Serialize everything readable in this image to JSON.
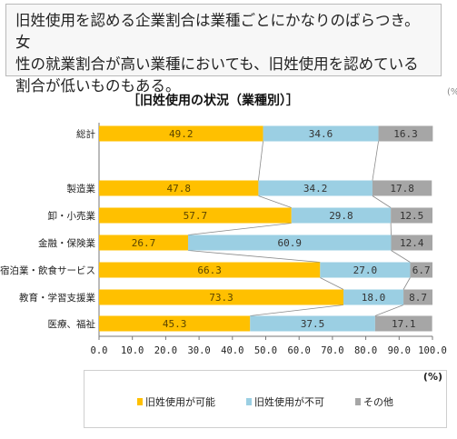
{
  "callout": {
    "lines": [
      "旧姓使用を認める企業割合は業種ごとにかなりのばらつき。女",
      "性の就業割合が高い業種においても、旧姓使用を認めている",
      "割合が低いものもある。"
    ]
  },
  "chart_data": {
    "type": "bar",
    "orientation": "horizontal",
    "stacked": true,
    "title": "［旧姓使用の状況（業種別）］",
    "unit": "(%)",
    "categories": [
      "総計",
      "製造業",
      "卸・小売業",
      "金融・保険業",
      "宿泊業・飲食サービス",
      "教育・学習支援業",
      "医療、福祉"
    ],
    "series": [
      {
        "name": "旧姓使用が可能",
        "color": "#ffc000",
        "values": [
          49.2,
          47.8,
          57.7,
          26.7,
          66.3,
          73.3,
          45.3
        ]
      },
      {
        "name": "旧姓使用が不可",
        "color": "#9bcfe3",
        "values": [
          34.6,
          34.2,
          29.8,
          60.9,
          27.0,
          18.0,
          37.5
        ]
      },
      {
        "name": "その他",
        "color": "#a6a6a6",
        "values": [
          16.3,
          17.8,
          12.5,
          12.4,
          6.7,
          8.7,
          17.1
        ]
      }
    ],
    "xlim": [
      0,
      100
    ],
    "xticks": [
      "0.0",
      "10.0",
      "20.0",
      "30.0",
      "40.0",
      "50.0",
      "60.0",
      "70.0",
      "80.0",
      "90.0",
      "100.0"
    ],
    "legend_position": "bottom",
    "grid": false
  },
  "side_mark": "(%"
}
